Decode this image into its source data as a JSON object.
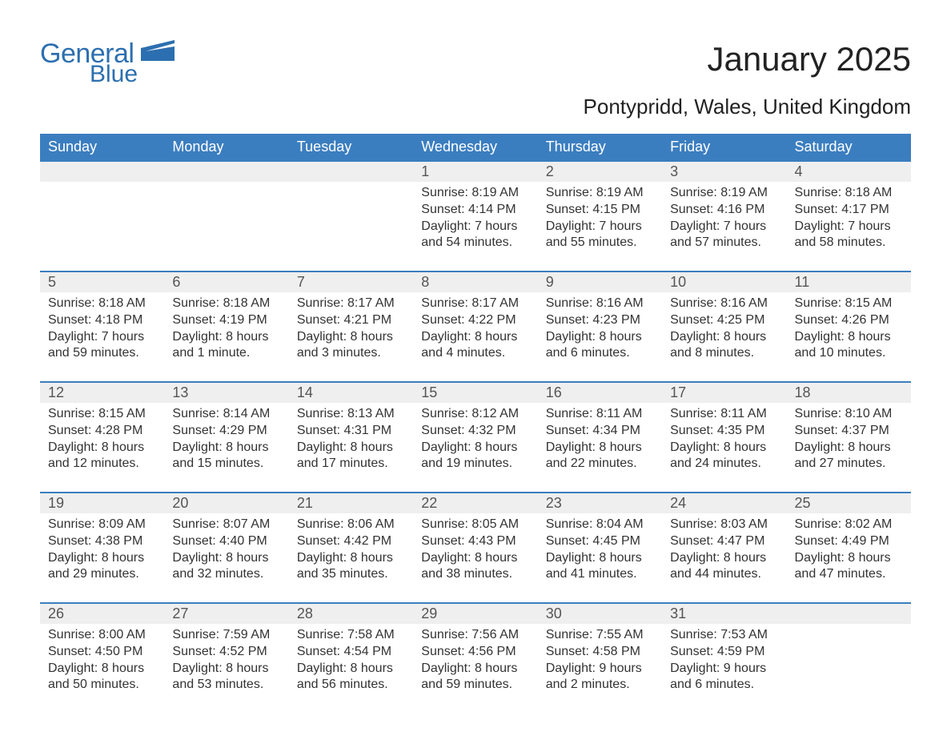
{
  "brand": {
    "name_part1": "General",
    "name_part2": "Blue",
    "color": "#2c6fb0"
  },
  "title": "January 2025",
  "location": "Pontypridd, Wales, United Kingdom",
  "header_bg": "#3b7ec0",
  "daynum_bg": "#efefef",
  "daynum_border": "#3b7ec0",
  "text_color": "#333333",
  "dayNames": [
    "Sunday",
    "Monday",
    "Tuesday",
    "Wednesday",
    "Thursday",
    "Friday",
    "Saturday"
  ],
  "weeks": [
    [
      null,
      null,
      null,
      {
        "n": "1",
        "sunrise": "Sunrise: 8:19 AM",
        "sunset": "Sunset: 4:14 PM",
        "day1": "Daylight: 7 hours",
        "day2": "and 54 minutes."
      },
      {
        "n": "2",
        "sunrise": "Sunrise: 8:19 AM",
        "sunset": "Sunset: 4:15 PM",
        "day1": "Daylight: 7 hours",
        "day2": "and 55 minutes."
      },
      {
        "n": "3",
        "sunrise": "Sunrise: 8:19 AM",
        "sunset": "Sunset: 4:16 PM",
        "day1": "Daylight: 7 hours",
        "day2": "and 57 minutes."
      },
      {
        "n": "4",
        "sunrise": "Sunrise: 8:18 AM",
        "sunset": "Sunset: 4:17 PM",
        "day1": "Daylight: 7 hours",
        "day2": "and 58 minutes."
      }
    ],
    [
      {
        "n": "5",
        "sunrise": "Sunrise: 8:18 AM",
        "sunset": "Sunset: 4:18 PM",
        "day1": "Daylight: 7 hours",
        "day2": "and 59 minutes."
      },
      {
        "n": "6",
        "sunrise": "Sunrise: 8:18 AM",
        "sunset": "Sunset: 4:19 PM",
        "day1": "Daylight: 8 hours",
        "day2": "and 1 minute."
      },
      {
        "n": "7",
        "sunrise": "Sunrise: 8:17 AM",
        "sunset": "Sunset: 4:21 PM",
        "day1": "Daylight: 8 hours",
        "day2": "and 3 minutes."
      },
      {
        "n": "8",
        "sunrise": "Sunrise: 8:17 AM",
        "sunset": "Sunset: 4:22 PM",
        "day1": "Daylight: 8 hours",
        "day2": "and 4 minutes."
      },
      {
        "n": "9",
        "sunrise": "Sunrise: 8:16 AM",
        "sunset": "Sunset: 4:23 PM",
        "day1": "Daylight: 8 hours",
        "day2": "and 6 minutes."
      },
      {
        "n": "10",
        "sunrise": "Sunrise: 8:16 AM",
        "sunset": "Sunset: 4:25 PM",
        "day1": "Daylight: 8 hours",
        "day2": "and 8 minutes."
      },
      {
        "n": "11",
        "sunrise": "Sunrise: 8:15 AM",
        "sunset": "Sunset: 4:26 PM",
        "day1": "Daylight: 8 hours",
        "day2": "and 10 minutes."
      }
    ],
    [
      {
        "n": "12",
        "sunrise": "Sunrise: 8:15 AM",
        "sunset": "Sunset: 4:28 PM",
        "day1": "Daylight: 8 hours",
        "day2": "and 12 minutes."
      },
      {
        "n": "13",
        "sunrise": "Sunrise: 8:14 AM",
        "sunset": "Sunset: 4:29 PM",
        "day1": "Daylight: 8 hours",
        "day2": "and 15 minutes."
      },
      {
        "n": "14",
        "sunrise": "Sunrise: 8:13 AM",
        "sunset": "Sunset: 4:31 PM",
        "day1": "Daylight: 8 hours",
        "day2": "and 17 minutes."
      },
      {
        "n": "15",
        "sunrise": "Sunrise: 8:12 AM",
        "sunset": "Sunset: 4:32 PM",
        "day1": "Daylight: 8 hours",
        "day2": "and 19 minutes."
      },
      {
        "n": "16",
        "sunrise": "Sunrise: 8:11 AM",
        "sunset": "Sunset: 4:34 PM",
        "day1": "Daylight: 8 hours",
        "day2": "and 22 minutes."
      },
      {
        "n": "17",
        "sunrise": "Sunrise: 8:11 AM",
        "sunset": "Sunset: 4:35 PM",
        "day1": "Daylight: 8 hours",
        "day2": "and 24 minutes."
      },
      {
        "n": "18",
        "sunrise": "Sunrise: 8:10 AM",
        "sunset": "Sunset: 4:37 PM",
        "day1": "Daylight: 8 hours",
        "day2": "and 27 minutes."
      }
    ],
    [
      {
        "n": "19",
        "sunrise": "Sunrise: 8:09 AM",
        "sunset": "Sunset: 4:38 PM",
        "day1": "Daylight: 8 hours",
        "day2": "and 29 minutes."
      },
      {
        "n": "20",
        "sunrise": "Sunrise: 8:07 AM",
        "sunset": "Sunset: 4:40 PM",
        "day1": "Daylight: 8 hours",
        "day2": "and 32 minutes."
      },
      {
        "n": "21",
        "sunrise": "Sunrise: 8:06 AM",
        "sunset": "Sunset: 4:42 PM",
        "day1": "Daylight: 8 hours",
        "day2": "and 35 minutes."
      },
      {
        "n": "22",
        "sunrise": "Sunrise: 8:05 AM",
        "sunset": "Sunset: 4:43 PM",
        "day1": "Daylight: 8 hours",
        "day2": "and 38 minutes."
      },
      {
        "n": "23",
        "sunrise": "Sunrise: 8:04 AM",
        "sunset": "Sunset: 4:45 PM",
        "day1": "Daylight: 8 hours",
        "day2": "and 41 minutes."
      },
      {
        "n": "24",
        "sunrise": "Sunrise: 8:03 AM",
        "sunset": "Sunset: 4:47 PM",
        "day1": "Daylight: 8 hours",
        "day2": "and 44 minutes."
      },
      {
        "n": "25",
        "sunrise": "Sunrise: 8:02 AM",
        "sunset": "Sunset: 4:49 PM",
        "day1": "Daylight: 8 hours",
        "day2": "and 47 minutes."
      }
    ],
    [
      {
        "n": "26",
        "sunrise": "Sunrise: 8:00 AM",
        "sunset": "Sunset: 4:50 PM",
        "day1": "Daylight: 8 hours",
        "day2": "and 50 minutes."
      },
      {
        "n": "27",
        "sunrise": "Sunrise: 7:59 AM",
        "sunset": "Sunset: 4:52 PM",
        "day1": "Daylight: 8 hours",
        "day2": "and 53 minutes."
      },
      {
        "n": "28",
        "sunrise": "Sunrise: 7:58 AM",
        "sunset": "Sunset: 4:54 PM",
        "day1": "Daylight: 8 hours",
        "day2": "and 56 minutes."
      },
      {
        "n": "29",
        "sunrise": "Sunrise: 7:56 AM",
        "sunset": "Sunset: 4:56 PM",
        "day1": "Daylight: 8 hours",
        "day2": "and 59 minutes."
      },
      {
        "n": "30",
        "sunrise": "Sunrise: 7:55 AM",
        "sunset": "Sunset: 4:58 PM",
        "day1": "Daylight: 9 hours",
        "day2": "and 2 minutes."
      },
      {
        "n": "31",
        "sunrise": "Sunrise: 7:53 AM",
        "sunset": "Sunset: 4:59 PM",
        "day1": "Daylight: 9 hours",
        "day2": "and 6 minutes."
      },
      null
    ]
  ]
}
